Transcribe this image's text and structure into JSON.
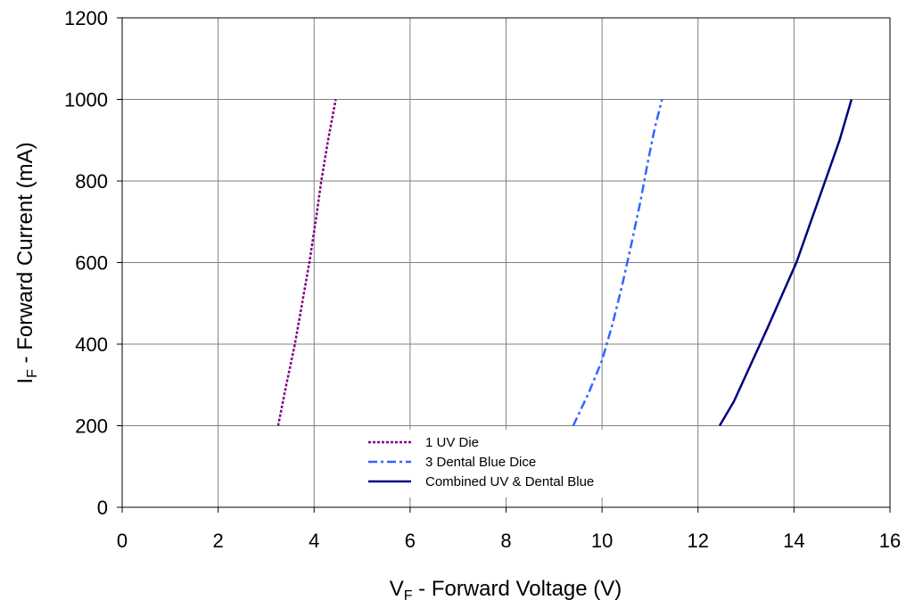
{
  "chart_data": {
    "type": "line",
    "title": "",
    "xlabel": {
      "main": "V",
      "sub": "F",
      "rest": " - Forward Voltage (V)"
    },
    "ylabel": {
      "main": "I",
      "sub": "F",
      "rest": " - Forward Current (mA)"
    },
    "xlim": [
      0,
      16
    ],
    "ylim": [
      0,
      1200
    ],
    "xticks": [
      0,
      2,
      4,
      6,
      8,
      10,
      12,
      14,
      16
    ],
    "yticks": [
      0,
      200,
      400,
      600,
      800,
      1000,
      1200
    ],
    "grid": true,
    "legend_position": "bottom-center",
    "series": [
      {
        "name": "1 UV Die",
        "color": "#800080",
        "dash": "dotted",
        "points": [
          [
            3.25,
            200
          ],
          [
            3.42,
            300
          ],
          [
            3.6,
            400
          ],
          [
            3.75,
            500
          ],
          [
            3.9,
            600
          ],
          [
            4.03,
            700
          ],
          [
            4.15,
            800
          ],
          [
            4.29,
            900
          ],
          [
            4.45,
            1000
          ]
        ]
      },
      {
        "name": "3 Dental Blue Dice",
        "color": "#3366ff",
        "dash": "dashdot",
        "points": [
          [
            9.4,
            200
          ],
          [
            9.72,
            280
          ],
          [
            10.0,
            360
          ],
          [
            10.22,
            450
          ],
          [
            10.43,
            550
          ],
          [
            10.62,
            650
          ],
          [
            10.8,
            750
          ],
          [
            10.96,
            850
          ],
          [
            11.1,
            930
          ],
          [
            11.25,
            1000
          ]
        ]
      },
      {
        "name": "Combined UV & Dental Blue",
        "color": "#000080",
        "dash": "solid",
        "points": [
          [
            12.45,
            200
          ],
          [
            12.75,
            260
          ],
          [
            13.1,
            350
          ],
          [
            13.45,
            440
          ],
          [
            13.75,
            520
          ],
          [
            14.05,
            600
          ],
          [
            14.35,
            700
          ],
          [
            14.65,
            800
          ],
          [
            14.95,
            900
          ],
          [
            15.2,
            1000
          ]
        ]
      }
    ]
  }
}
